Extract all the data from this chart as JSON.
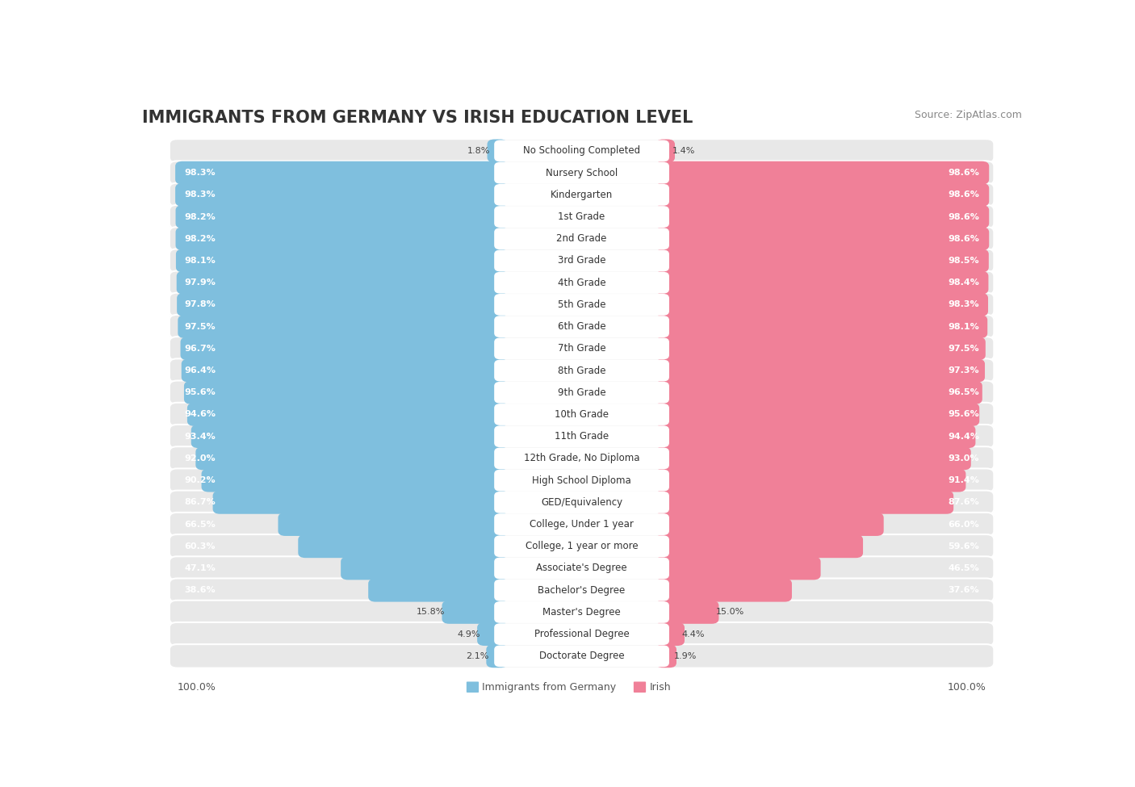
{
  "title": "IMMIGRANTS FROM GERMANY VS IRISH EDUCATION LEVEL",
  "source": "Source: ZipAtlas.com",
  "categories": [
    "No Schooling Completed",
    "Nursery School",
    "Kindergarten",
    "1st Grade",
    "2nd Grade",
    "3rd Grade",
    "4th Grade",
    "5th Grade",
    "6th Grade",
    "7th Grade",
    "8th Grade",
    "9th Grade",
    "10th Grade",
    "11th Grade",
    "12th Grade, No Diploma",
    "High School Diploma",
    "GED/Equivalency",
    "College, Under 1 year",
    "College, 1 year or more",
    "Associate's Degree",
    "Bachelor's Degree",
    "Master's Degree",
    "Professional Degree",
    "Doctorate Degree"
  ],
  "germany_values": [
    1.8,
    98.3,
    98.3,
    98.2,
    98.2,
    98.1,
    97.9,
    97.8,
    97.5,
    96.7,
    96.4,
    95.6,
    94.6,
    93.4,
    92.0,
    90.2,
    86.7,
    66.5,
    60.3,
    47.1,
    38.6,
    15.8,
    4.9,
    2.1
  ],
  "irish_values": [
    1.4,
    98.6,
    98.6,
    98.6,
    98.6,
    98.5,
    98.4,
    98.3,
    98.1,
    97.5,
    97.3,
    96.5,
    95.6,
    94.4,
    93.0,
    91.4,
    87.6,
    66.0,
    59.6,
    46.5,
    37.6,
    15.0,
    4.4,
    1.9
  ],
  "germany_color": "#7fbfde",
  "irish_color": "#f08098",
  "row_bg_color": "#e8e8e8",
  "label_bg_color": "#ffffff",
  "legend_germany": "Immigrants from Germany",
  "legend_irish": "Irish",
  "title_fontsize": 15,
  "label_fontsize": 8.5,
  "value_fontsize": 8,
  "footer_fontsize": 9,
  "max_value": 100.0
}
